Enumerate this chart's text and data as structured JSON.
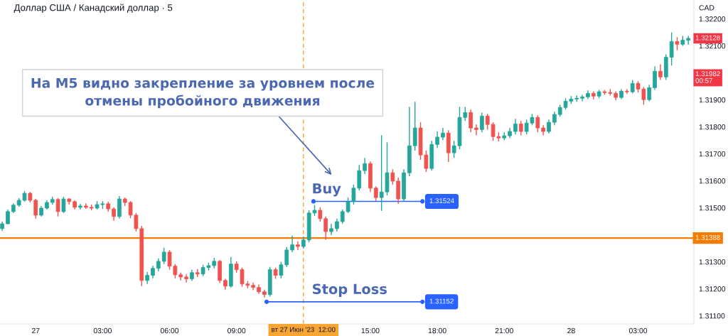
{
  "chart_data": {
    "type": "candlestick",
    "title": "Доллар США / Канадский доллар · 5",
    "ylabel": "CAD",
    "x": [
      "2023-06-26T22:30",
      "2023-06-26T22:45",
      "2023-06-26T23:00",
      "2023-06-26T23:15",
      "2023-06-26T23:30",
      "2023-06-26T23:45",
      "2023-06-27T00:00",
      "2023-06-27T00:15",
      "2023-06-27T00:30",
      "2023-06-27T00:45",
      "2023-06-27T01:00",
      "2023-06-27T01:15",
      "2023-06-27T01:30",
      "2023-06-27T01:45",
      "2023-06-27T02:00",
      "2023-06-27T02:15",
      "2023-06-27T02:30",
      "2023-06-27T02:45",
      "2023-06-27T03:00",
      "2023-06-27T03:15",
      "2023-06-27T03:30",
      "2023-06-27T03:45",
      "2023-06-27T04:00",
      "2023-06-27T04:15",
      "2023-06-27T04:30",
      "2023-06-27T04:45",
      "2023-06-27T05:00",
      "2023-06-27T05:15",
      "2023-06-27T05:30",
      "2023-06-27T05:45",
      "2023-06-27T06:00",
      "2023-06-27T06:15",
      "2023-06-27T06:30",
      "2023-06-27T06:45",
      "2023-06-27T07:00",
      "2023-06-27T07:15",
      "2023-06-27T07:30",
      "2023-06-27T07:45",
      "2023-06-27T08:00",
      "2023-06-27T08:15",
      "2023-06-27T08:30",
      "2023-06-27T08:45",
      "2023-06-27T09:00",
      "2023-06-27T09:15",
      "2023-06-27T09:30",
      "2023-06-27T09:45",
      "2023-06-27T10:00",
      "2023-06-27T10:15",
      "2023-06-27T10:30",
      "2023-06-27T10:45",
      "2023-06-27T11:00",
      "2023-06-27T11:15",
      "2023-06-27T11:30",
      "2023-06-27T11:45",
      "2023-06-27T12:00",
      "2023-06-27T12:15",
      "2023-06-27T12:30",
      "2023-06-27T12:45",
      "2023-06-27T13:00",
      "2023-06-27T13:15",
      "2023-06-27T13:30",
      "2023-06-27T13:45",
      "2023-06-27T14:00",
      "2023-06-27T14:15",
      "2023-06-27T14:30",
      "2023-06-27T14:45",
      "2023-06-27T15:00",
      "2023-06-27T15:15",
      "2023-06-27T15:30",
      "2023-06-27T15:45",
      "2023-06-27T16:00",
      "2023-06-27T16:15",
      "2023-06-27T16:30",
      "2023-06-27T16:45",
      "2023-06-27T17:00",
      "2023-06-27T17:15",
      "2023-06-27T17:30",
      "2023-06-27T17:45",
      "2023-06-27T18:00",
      "2023-06-27T18:15",
      "2023-06-27T18:30",
      "2023-06-27T18:45",
      "2023-06-27T19:00",
      "2023-06-27T19:15",
      "2023-06-27T19:30",
      "2023-06-27T19:45",
      "2023-06-27T20:00",
      "2023-06-27T20:15",
      "2023-06-27T20:30",
      "2023-06-27T20:45",
      "2023-06-27T21:00",
      "2023-06-27T21:15",
      "2023-06-27T21:30",
      "2023-06-27T21:45",
      "2023-06-27T22:00",
      "2023-06-27T22:15",
      "2023-06-27T22:30",
      "2023-06-27T22:45",
      "2023-06-27T23:00",
      "2023-06-27T23:15",
      "2023-06-27T23:30",
      "2023-06-27T23:45",
      "2023-06-28T00:00",
      "2023-06-28T00:15",
      "2023-06-28T00:30",
      "2023-06-28T00:45",
      "2023-06-28T01:00",
      "2023-06-28T01:15",
      "2023-06-28T01:30",
      "2023-06-28T01:45",
      "2023-06-28T02:00",
      "2023-06-28T02:15",
      "2023-06-28T02:30",
      "2023-06-28T02:45",
      "2023-06-28T03:00",
      "2023-06-28T03:15",
      "2023-06-28T03:30",
      "2023-06-28T03:45",
      "2023-06-28T04:00",
      "2023-06-28T04:15",
      "2023-06-28T04:30",
      "2023-06-28T04:45",
      "2023-06-28T05:00",
      "2023-06-28T05:15"
    ],
    "ohlc": [
      [
        1.31423,
        1.31449,
        1.31415,
        1.31441
      ],
      [
        1.31441,
        1.31494,
        1.31439,
        1.31486
      ],
      [
        1.31486,
        1.31517,
        1.31481,
        1.3151
      ],
      [
        1.3151,
        1.31536,
        1.31504,
        1.31528
      ],
      [
        1.31528,
        1.31562,
        1.31523,
        1.31554
      ],
      [
        1.31554,
        1.31559,
        1.3152,
        1.31528
      ],
      [
        1.31528,
        1.31533,
        1.3146,
        1.31473
      ],
      [
        1.31473,
        1.31507,
        1.31468,
        1.31499
      ],
      [
        1.31499,
        1.31528,
        1.31494,
        1.3152
      ],
      [
        1.3152,
        1.31541,
        1.31512,
        1.31531
      ],
      [
        1.31531,
        1.31536,
        1.31468,
        1.31486
      ],
      [
        1.31486,
        1.31541,
        1.31481,
        1.31533
      ],
      [
        1.31533,
        1.31536,
        1.31512,
        1.31523
      ],
      [
        1.31523,
        1.31528,
        1.31494,
        1.31502
      ],
      [
        1.31502,
        1.31515,
        1.31494,
        1.31507
      ],
      [
        1.31507,
        1.31517,
        1.31496,
        1.31502
      ],
      [
        1.31502,
        1.31512,
        1.31491,
        1.31499
      ],
      [
        1.31499,
        1.31525,
        1.31494,
        1.31512
      ],
      [
        1.31512,
        1.31525,
        1.31496,
        1.31515
      ],
      [
        1.31515,
        1.31523,
        1.31486,
        1.31496
      ],
      [
        1.31496,
        1.31502,
        1.31452,
        1.31468
      ],
      [
        1.31468,
        1.31544,
        1.3146,
        1.31533
      ],
      [
        1.31533,
        1.31538,
        1.31507,
        1.3152
      ],
      [
        1.3152,
        1.31525,
        1.31462,
        1.31473
      ],
      [
        1.31473,
        1.31481,
        1.31412,
        1.31423
      ],
      [
        1.31423,
        1.31433,
        1.3121,
        1.31231
      ],
      [
        1.31231,
        1.31263,
        1.31218,
        1.3125
      ],
      [
        1.3125,
        1.31286,
        1.31239,
        1.31276
      ],
      [
        1.31276,
        1.31313,
        1.31265,
        1.31302
      ],
      [
        1.31302,
        1.31352,
        1.31292,
        1.31336
      ],
      [
        1.31336,
        1.31344,
        1.31271,
        1.31284
      ],
      [
        1.31284,
        1.31292,
        1.31239,
        1.31252
      ],
      [
        1.31252,
        1.3126,
        1.31231,
        1.31244
      ],
      [
        1.31244,
        1.31255,
        1.31223,
        1.31237
      ],
      [
        1.31237,
        1.31271,
        1.31229,
        1.3126
      ],
      [
        1.3126,
        1.31273,
        1.31244,
        1.31255
      ],
      [
        1.31255,
        1.31289,
        1.31247,
        1.31279
      ],
      [
        1.31279,
        1.31297,
        1.31268,
        1.31286
      ],
      [
        1.31286,
        1.31315,
        1.31276,
        1.31302
      ],
      [
        1.31302,
        1.31307,
        1.31221,
        1.31231
      ],
      [
        1.31231,
        1.31237,
        1.31197,
        1.3121
      ],
      [
        1.3121,
        1.31318,
        1.31205,
        1.31292
      ],
      [
        1.31292,
        1.31302,
        1.3126,
        1.31271
      ],
      [
        1.31271,
        1.31279,
        1.31208,
        1.31218
      ],
      [
        1.31218,
        1.31229,
        1.31202,
        1.31213
      ],
      [
        1.31213,
        1.31223,
        1.31195,
        1.31205
      ],
      [
        1.31205,
        1.31216,
        1.31181,
        1.31189
      ],
      [
        1.31189,
        1.31197,
        1.31168,
        1.31179
      ],
      [
        1.31179,
        1.31281,
        1.31171,
        1.31271
      ],
      [
        1.31271,
        1.31279,
        1.31237,
        1.3125
      ],
      [
        1.3125,
        1.313,
        1.31239,
        1.31289
      ],
      [
        1.31289,
        1.31355,
        1.31281,
        1.31344
      ],
      [
        1.31344,
        1.31397,
        1.31336,
        1.31363
      ],
      [
        1.31363,
        1.31376,
        1.31344,
        1.31357
      ],
      [
        1.31357,
        1.31394,
        1.31349,
        1.31381
      ],
      [
        1.31381,
        1.31491,
        1.31373,
        1.31481
      ],
      [
        1.31481,
        1.3151,
        1.3147,
        1.31491
      ],
      [
        1.31491,
        1.31502,
        1.31449,
        1.3146
      ],
      [
        1.3146,
        1.31468,
        1.31381,
        1.31412
      ],
      [
        1.31412,
        1.31441,
        1.31399,
        1.31423
      ],
      [
        1.31423,
        1.3146,
        1.31412,
        1.31449
      ],
      [
        1.31449,
        1.31494,
        1.31441,
        1.31486
      ],
      [
        1.31486,
        1.31538,
        1.31481,
        1.31523
      ],
      [
        1.31523,
        1.31586,
        1.31512,
        1.31573
      ],
      [
        1.31573,
        1.31659,
        1.31565,
        1.31638
      ],
      [
        1.31638,
        1.31685,
        1.31625,
        1.31664
      ],
      [
        1.31664,
        1.31672,
        1.31559,
        1.31573
      ],
      [
        1.31573,
        1.3158,
        1.31525,
        1.31538
      ],
      [
        1.31538,
        1.31769,
        1.31489,
        1.31559
      ],
      [
        1.31559,
        1.31743,
        1.31546,
        1.3163
      ],
      [
        1.3163,
        1.31643,
        1.31586,
        1.31599
      ],
      [
        1.31599,
        1.31612,
        1.31515,
        1.31533
      ],
      [
        1.31533,
        1.31643,
        1.31523,
        1.3163
      ],
      [
        1.3163,
        1.31874,
        1.31617,
        1.3173
      ],
      [
        1.3173,
        1.31893,
        1.31712,
        1.31796
      ],
      [
        1.31796,
        1.31817,
        1.31678,
        1.31696
      ],
      [
        1.31696,
        1.31712,
        1.31633,
        1.31646
      ],
      [
        1.31646,
        1.31748,
        1.31638,
        1.31735
      ],
      [
        1.31735,
        1.31783,
        1.31722,
        1.31762
      ],
      [
        1.31762,
        1.31796,
        1.31751,
        1.31777
      ],
      [
        1.31777,
        1.31788,
        1.3167,
        1.31704
      ],
      [
        1.31704,
        1.31748,
        1.31685,
        1.3173
      ],
      [
        1.3173,
        1.31874,
        1.31717,
        1.31835
      ],
      [
        1.31835,
        1.31874,
        1.31822,
        1.31853
      ],
      [
        1.31853,
        1.31864,
        1.3178,
        1.31796
      ],
      [
        1.31796,
        1.31809,
        1.31769,
        1.3179
      ],
      [
        1.3179,
        1.31853,
        1.3178,
        1.3184
      ],
      [
        1.3184,
        1.31848,
        1.3179,
        1.31809
      ],
      [
        1.31809,
        1.31817,
        1.31748,
        1.31764
      ],
      [
        1.31764,
        1.3178,
        1.31746,
        1.31759
      ],
      [
        1.31759,
        1.3178,
        1.31751,
        1.31767
      ],
      [
        1.31767,
        1.31796,
        1.31759,
        1.31783
      ],
      [
        1.31783,
        1.3183,
        1.31772,
        1.31811
      ],
      [
        1.31811,
        1.31822,
        1.31769,
        1.31783
      ],
      [
        1.31783,
        1.31827,
        1.31772,
        1.31814
      ],
      [
        1.31814,
        1.31848,
        1.31806,
        1.31835
      ],
      [
        1.31835,
        1.31843,
        1.3178,
        1.31796
      ],
      [
        1.31796,
        1.31806,
        1.31769,
        1.31783
      ],
      [
        1.31783,
        1.31827,
        1.31775,
        1.31817
      ],
      [
        1.31817,
        1.31856,
        1.31806,
        1.31846
      ],
      [
        1.31846,
        1.31882,
        1.31838,
        1.31872
      ],
      [
        1.31872,
        1.31906,
        1.31864,
        1.31895
      ],
      [
        1.31895,
        1.31914,
        1.31885,
        1.31903
      ],
      [
        1.31903,
        1.31916,
        1.31893,
        1.31906
      ],
      [
        1.31906,
        1.31919,
        1.31895,
        1.31911
      ],
      [
        1.31911,
        1.31935,
        1.31903,
        1.31924
      ],
      [
        1.31924,
        1.31932,
        1.31901,
        1.31914
      ],
      [
        1.31914,
        1.31937,
        1.31906,
        1.3193
      ],
      [
        1.3193,
        1.31937,
        1.31919,
        1.31927
      ],
      [
        1.31927,
        1.3194,
        1.31916,
        1.31924
      ],
      [
        1.31924,
        1.31932,
        1.31898,
        1.31909
      ],
      [
        1.31909,
        1.3194,
        1.31903,
        1.31932
      ],
      [
        1.31932,
        1.3194,
        1.31922,
        1.3193
      ],
      [
        1.3193,
        1.31974,
        1.31924,
        1.31961
      ],
      [
        1.31961,
        1.31969,
        1.31927,
        1.3194
      ],
      [
        1.3194,
        1.31948,
        1.31882,
        1.31901
      ],
      [
        1.31901,
        1.31956,
        1.31895,
        1.31945
      ],
      [
        1.31945,
        1.32024,
        1.31937,
        1.32006
      ],
      [
        1.32006,
        1.32032,
        1.31974,
        1.31985
      ],
      [
        1.31985,
        1.32069,
        1.31974,
        1.32058
      ],
      [
        1.32058,
        1.3215,
        1.32027,
        1.32116
      ],
      [
        1.32116,
        1.32132,
        1.32084,
        1.32106
      ],
      [
        1.32106,
        1.32137,
        1.321,
        1.32121
      ],
      [
        1.32121,
        1.32137,
        1.32105,
        1.32128
      ]
    ],
    "colors": [
      "#26a69a",
      "#26a69a",
      "#26a69a",
      "#26a69a",
      "#26a69a",
      "#ef5350",
      "#ef5350",
      "#26a69a",
      "#26a69a",
      "#26a69a",
      "#ef5350",
      "#26a69a",
      "#ef5350",
      "#ef5350",
      "#26a69a",
      "#ef5350",
      "#ef5350",
      "#26a69a",
      "#26a69a",
      "#ef5350",
      "#ef5350",
      "#26a69a",
      "#ef5350",
      "#ef5350",
      "#ef5350",
      "#ef5350",
      "#26a69a",
      "#26a69a",
      "#26a69a",
      "#26a69a",
      "#ef5350",
      "#ef5350",
      "#ef5350",
      "#ef5350",
      "#26a69a",
      "#ef5350",
      "#26a69a",
      "#26a69a",
      "#26a69a",
      "#ef5350",
      "#ef5350",
      "#26a69a",
      "#ef5350",
      "#ef5350",
      "#ef5350",
      "#ef5350",
      "#ef5350",
      "#ef5350",
      "#26a69a",
      "#ef5350",
      "#26a69a",
      "#26a69a",
      "#26a69a",
      "#ef5350",
      "#26a69a",
      "#26a69a",
      "#26a69a",
      "#ef5350",
      "#ef5350",
      "#26a69a",
      "#26a69a",
      "#26a69a",
      "#26a69a",
      "#26a69a",
      "#26a69a",
      "#26a69a",
      "#ef5350",
      "#ef5350",
      "#26a69a",
      "#26a69a",
      "#ef5350",
      "#ef5350",
      "#26a69a",
      "#26a69a",
      "#26a69a",
      "#ef5350",
      "#ef5350",
      "#26a69a",
      "#26a69a",
      "#26a69a",
      "#ef5350",
      "#26a69a",
      "#26a69a",
      "#26a69a",
      "#ef5350",
      "#ef5350",
      "#26a69a",
      "#ef5350",
      "#ef5350",
      "#ef5350",
      "#26a69a",
      "#26a69a",
      "#26a69a",
      "#ef5350",
      "#26a69a",
      "#26a69a",
      "#ef5350",
      "#ef5350",
      "#26a69a",
      "#26a69a",
      "#26a69a",
      "#26a69a",
      "#26a69a",
      "#26a69a",
      "#26a69a",
      "#26a69a",
      "#ef5350",
      "#26a69a",
      "#ef5350",
      "#ef5350",
      "#ef5350",
      "#26a69a",
      "#ef5350",
      "#26a69a",
      "#ef5350",
      "#ef5350",
      "#26a69a",
      "#26a69a",
      "#ef5350",
      "#26a69a",
      "#26a69a",
      "#ef5350",
      "#26a69a",
      "#26a69a"
    ],
    "series": [
      {
        "type": "line",
        "name": "Buy",
        "color": "#2962ff",
        "marker": "circle",
        "line_style": "solid",
        "x": [
          "2023-06-27T12:27",
          "2023-06-27T17:20"
        ],
        "values": [
          1.31524,
          1.31524
        ],
        "value_labels": [
          null,
          "1.31524"
        ]
      },
      {
        "type": "line",
        "name": "Stop Loss",
        "color": "#2962ff",
        "marker": "circle",
        "line_style": "solid",
        "x": [
          "2023-06-27T10:21",
          "2023-06-27T17:20"
        ],
        "values": [
          1.31152,
          1.31152
        ],
        "value_labels": [
          null,
          "1.31152"
        ]
      }
    ],
    "xlim": [
      "2023-06-26T22:24",
      "2023-06-28T05:30"
    ],
    "xticks": [
      {
        "value": "2023-06-27T00:00",
        "label": "27"
      },
      {
        "value": "2023-06-27T03:00",
        "label": "03:00"
      },
      {
        "value": "2023-06-27T06:00",
        "label": "06:00"
      },
      {
        "value": "2023-06-27T09:00",
        "label": "09:00"
      },
      {
        "value": "2023-06-27T15:00",
        "label": "15:00"
      },
      {
        "value": "2023-06-27T18:00",
        "label": "18:00"
      },
      {
        "value": "2023-06-27T21:00",
        "label": "21:00"
      },
      {
        "value": "2023-06-28T00:00",
        "label": "28"
      },
      {
        "value": "2023-06-28T03:00",
        "label": "03:00"
      }
    ],
    "ylim": [
      1.3107,
      1.3227
    ],
    "yticks": [
      {
        "value": 1.311,
        "label": "1.31100"
      },
      {
        "value": 1.312,
        "label": "1.31200"
      },
      {
        "value": 1.313,
        "label": "1.31300"
      },
      {
        "value": 1.315,
        "label": "1.31500"
      },
      {
        "value": 1.316,
        "label": "1.31600"
      },
      {
        "value": 1.317,
        "label": "1.31700"
      },
      {
        "value": 1.318,
        "label": "1.31800"
      },
      {
        "value": 1.319,
        "label": "1.31900"
      },
      {
        "value": 1.321,
        "label": "1.32100"
      },
      {
        "value": 1.322,
        "label": "1.32200"
      }
    ],
    "ref_lines": [
      {
        "axis": "y",
        "value": 1.31388,
        "label": "1.31388",
        "color": "#f57c00",
        "line_style": "solid"
      },
      {
        "axis": "x",
        "value": "2023-06-27T12:00",
        "label": "вт 27 Июн '23  12:00",
        "color": "#f9a533",
        "line_style": "dashed"
      }
    ],
    "annotations": [
      "На М5 видно закрепление за уровнем после\nотмены пробойного движения",
      {
        "text": "1.32128",
        "y": 1.32128
      },
      {
        "text": "1.31982\n00:57",
        "y": 1.31982
      }
    ],
    "grid": false
  }
}
